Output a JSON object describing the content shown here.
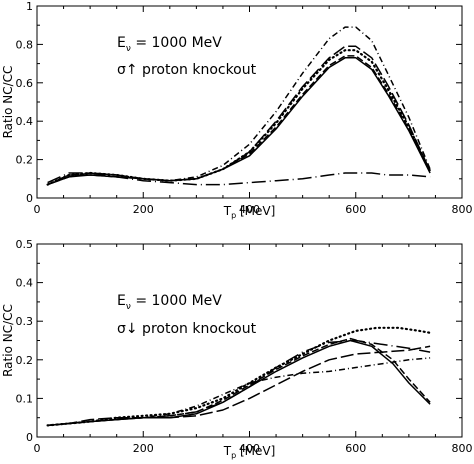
{
  "chart_data": [
    {
      "type": "line",
      "xlabel": "T_p [MeV]",
      "xlabel_main": "T",
      "xlabel_sub": "p",
      "xlabel_unit": " [MeV]",
      "ylabel": "Ratio NC/CC",
      "xlim": [
        0,
        800
      ],
      "ylim": [
        0,
        1
      ],
      "xticks": [
        0,
        200,
        400,
        600,
        800
      ],
      "yticks": [
        0,
        0.2,
        0.4,
        0.6,
        0.8,
        1
      ],
      "ytick_labels": [
        "0",
        "0.2",
        "0.4",
        "0.6",
        "0.8",
        "1"
      ],
      "annotation_line1_main": "E",
      "annotation_line1_sub": "ν",
      "annotation_line1_rest": " = 1000 MeV",
      "annotation_line2": "σ↑  proton knockout",
      "grid": false,
      "series": [
        {
          "style": "solid",
          "x": [
            20,
            60,
            100,
            150,
            200,
            250,
            300,
            350,
            400,
            450,
            500,
            550,
            580,
            600,
            630,
            660,
            700,
            740
          ],
          "y": [
            0.07,
            0.11,
            0.12,
            0.11,
            0.1,
            0.09,
            0.1,
            0.15,
            0.22,
            0.36,
            0.53,
            0.68,
            0.73,
            0.73,
            0.67,
            0.54,
            0.35,
            0.13
          ]
        },
        {
          "style": "dashed",
          "x": [
            20,
            60,
            100,
            150,
            200,
            250,
            300,
            350,
            400,
            450,
            500,
            550,
            580,
            600,
            630,
            660,
            700,
            740
          ],
          "y": [
            0.07,
            0.12,
            0.12,
            0.11,
            0.1,
            0.09,
            0.1,
            0.15,
            0.23,
            0.37,
            0.54,
            0.69,
            0.74,
            0.74,
            0.68,
            0.55,
            0.36,
            0.14
          ]
        },
        {
          "style": "dotted",
          "x": [
            20,
            60,
            100,
            150,
            200,
            250,
            300,
            350,
            400,
            450,
            500,
            550,
            580,
            600,
            630,
            660,
            700,
            740
          ],
          "y": [
            0.07,
            0.12,
            0.13,
            0.12,
            0.1,
            0.09,
            0.1,
            0.15,
            0.24,
            0.39,
            0.57,
            0.72,
            0.77,
            0.77,
            0.71,
            0.57,
            0.37,
            0.14
          ]
        },
        {
          "style": "dash-dot",
          "x": [
            20,
            60,
            100,
            150,
            200,
            250,
            300,
            350,
            400,
            450,
            500,
            550,
            580,
            600,
            630,
            660,
            700,
            740
          ],
          "y": [
            0.07,
            0.12,
            0.13,
            0.12,
            0.1,
            0.09,
            0.11,
            0.17,
            0.28,
            0.45,
            0.65,
            0.83,
            0.89,
            0.89,
            0.82,
            0.65,
            0.42,
            0.15
          ]
        },
        {
          "style": "long-dash",
          "x": [
            20,
            60,
            100,
            150,
            200,
            250,
            300,
            350,
            400,
            450,
            500,
            550,
            580,
            600,
            630,
            660,
            700,
            740
          ],
          "y": [
            0.07,
            0.11,
            0.13,
            0.12,
            0.1,
            0.09,
            0.1,
            0.15,
            0.24,
            0.4,
            0.58,
            0.73,
            0.79,
            0.79,
            0.73,
            0.59,
            0.38,
            0.14
          ]
        },
        {
          "style": "long-dash-dot",
          "x": [
            20,
            60,
            100,
            150,
            200,
            250,
            300,
            350,
            400,
            450,
            500,
            550,
            580,
            600,
            630,
            660,
            700,
            740
          ],
          "y": [
            0.08,
            0.13,
            0.13,
            0.11,
            0.09,
            0.08,
            0.07,
            0.07,
            0.08,
            0.09,
            0.1,
            0.12,
            0.13,
            0.13,
            0.13,
            0.12,
            0.12,
            0.11
          ]
        }
      ]
    },
    {
      "type": "line",
      "xlabel": "T_p [MeV]",
      "xlabel_main": "T",
      "xlabel_sub": "p",
      "xlabel_unit": " [MeV]",
      "ylabel": "Ratio NC/CC",
      "xlim": [
        0,
        800
      ],
      "ylim": [
        0,
        0.5
      ],
      "xticks": [
        0,
        200,
        400,
        600,
        800
      ],
      "yticks": [
        0,
        0.1,
        0.2,
        0.3,
        0.4,
        0.5
      ],
      "ytick_labels": [
        "0",
        "0.1",
        "0.2",
        "0.3",
        "0.4",
        "0.5"
      ],
      "annotation_line1_main": "E",
      "annotation_line1_sub": "ν",
      "annotation_line1_rest": " = 1000 MeV",
      "annotation_line2": "σ↓  proton knockout",
      "grid": false,
      "series": [
        {
          "style": "solid",
          "x": [
            20,
            60,
            100,
            150,
            200,
            250,
            300,
            350,
            400,
            450,
            500,
            550,
            590,
            630,
            670,
            700,
            740
          ],
          "y": [
            0.03,
            0.035,
            0.04,
            0.045,
            0.05,
            0.05,
            0.06,
            0.09,
            0.13,
            0.17,
            0.205,
            0.235,
            0.25,
            0.235,
            0.19,
            0.14,
            0.085
          ]
        },
        {
          "style": "dashed",
          "x": [
            20,
            60,
            100,
            150,
            200,
            250,
            300,
            350,
            400,
            450,
            500,
            550,
            590,
            630,
            670,
            700,
            740
          ],
          "y": [
            0.03,
            0.035,
            0.04,
            0.045,
            0.05,
            0.055,
            0.065,
            0.095,
            0.135,
            0.175,
            0.21,
            0.24,
            0.255,
            0.24,
            0.2,
            0.15,
            0.09
          ]
        },
        {
          "style": "dotted",
          "x": [
            20,
            60,
            100,
            150,
            200,
            250,
            300,
            350,
            400,
            450,
            500,
            550,
            600,
            640,
            680,
            720,
            740
          ],
          "y": [
            0.03,
            0.035,
            0.04,
            0.05,
            0.055,
            0.06,
            0.075,
            0.1,
            0.14,
            0.18,
            0.215,
            0.25,
            0.275,
            0.283,
            0.283,
            0.275,
            0.27
          ]
        },
        {
          "style": "dash-dot",
          "x": [
            20,
            60,
            100,
            150,
            200,
            250,
            300,
            350,
            400,
            450,
            500,
            550,
            600,
            650,
            700,
            740
          ],
          "y": [
            0.03,
            0.035,
            0.04,
            0.045,
            0.05,
            0.06,
            0.08,
            0.11,
            0.14,
            0.155,
            0.165,
            0.17,
            0.18,
            0.19,
            0.2,
            0.205
          ]
        },
        {
          "style": "long-dash",
          "x": [
            20,
            60,
            100,
            150,
            200,
            250,
            300,
            350,
            400,
            450,
            500,
            550,
            600,
            650,
            700,
            740
          ],
          "y": [
            0.03,
            0.035,
            0.045,
            0.05,
            0.05,
            0.05,
            0.055,
            0.07,
            0.1,
            0.135,
            0.17,
            0.2,
            0.215,
            0.22,
            0.225,
            0.235
          ]
        },
        {
          "style": "long-dash-dot",
          "x": [
            20,
            60,
            100,
            150,
            200,
            250,
            300,
            350,
            400,
            450,
            500,
            550,
            600,
            650,
            700,
            740
          ],
          "y": [
            0.03,
            0.035,
            0.04,
            0.045,
            0.05,
            0.055,
            0.065,
            0.09,
            0.13,
            0.18,
            0.22,
            0.245,
            0.25,
            0.24,
            0.23,
            0.22
          ]
        }
      ]
    }
  ]
}
